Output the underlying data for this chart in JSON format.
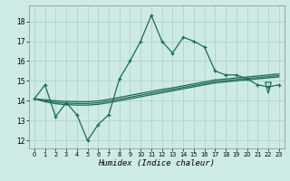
{
  "xlabel": "Humidex (Indice chaleur)",
  "background_color": "#ceeae4",
  "grid_color": "#aed4cc",
  "line_color": "#1a6b5a",
  "x_ticks": [
    0,
    1,
    2,
    3,
    4,
    5,
    6,
    7,
    8,
    9,
    10,
    11,
    12,
    13,
    14,
    15,
    16,
    17,
    18,
    19,
    20,
    21,
    22,
    23
  ],
  "y_ticks": [
    12,
    13,
    14,
    15,
    16,
    17,
    18
  ],
  "ylim": [
    11.6,
    18.8
  ],
  "xlim": [
    -0.5,
    23.5
  ],
  "main_line": [
    14.1,
    14.8,
    13.2,
    13.9,
    13.3,
    12.0,
    12.8,
    13.3,
    15.1,
    16.0,
    17.0,
    18.3,
    17.0,
    16.4,
    17.2,
    17.0,
    16.7,
    15.5,
    15.3,
    15.3,
    15.1,
    14.8,
    14.7,
    14.8
  ],
  "trend1": [
    14.1,
    13.95,
    13.85,
    13.8,
    13.78,
    13.78,
    13.82,
    13.9,
    14.0,
    14.1,
    14.2,
    14.3,
    14.4,
    14.5,
    14.6,
    14.7,
    14.8,
    14.9,
    14.95,
    15.0,
    15.05,
    15.1,
    15.15,
    15.2
  ],
  "trend2": [
    14.1,
    14.0,
    13.92,
    13.88,
    13.86,
    13.86,
    13.9,
    13.98,
    14.08,
    14.18,
    14.28,
    14.38,
    14.48,
    14.57,
    14.67,
    14.77,
    14.87,
    14.97,
    15.02,
    15.07,
    15.12,
    15.17,
    15.22,
    15.27
  ],
  "trend3": [
    14.1,
    14.05,
    14.0,
    13.97,
    13.95,
    13.95,
    13.99,
    14.07,
    14.17,
    14.27,
    14.37,
    14.47,
    14.57,
    14.65,
    14.75,
    14.85,
    14.95,
    15.05,
    15.1,
    15.15,
    15.2,
    15.25,
    15.3,
    15.35
  ],
  "triangle_x": 22,
  "triangle_y": 14.65,
  "triangle_size": 0.28
}
